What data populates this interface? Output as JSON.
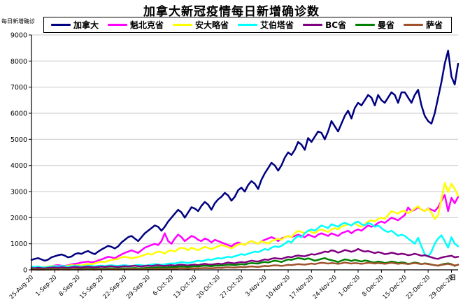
{
  "colors": {
    "grid": "#c9c9c9",
    "axis": "#000000",
    "background": "#ffffff",
    "text": "#000000"
  },
  "chart_data": {
    "type": "line",
    "title": "加拿大新冠疫情每日新增确诊数",
    "ylabel": "每日新增确诊",
    "xlabel": "日",
    "ylim": [
      0,
      9000
    ],
    "y_ticks": [
      0,
      1000,
      2000,
      3000,
      4000,
      5000,
      6000,
      7000,
      8000,
      9000
    ],
    "grid": "horizontal",
    "legend_position": "top",
    "x_tick_interval_days": 7,
    "x_tick_labels": [
      "25-Aug-20",
      "1-Sep-20",
      "8-Sep-20",
      "15-Sep-20",
      "22-Sep-20",
      "29-Sep-20",
      "6-Oct-20",
      "13-Oct-20",
      "20-Oct-20",
      "27-Oct-20",
      "3-Nov-20",
      "10-Nov-20",
      "17-Nov-20",
      "24-Nov-20",
      "1-Dec-20",
      "8-Dec-20",
      "15-Dec-20",
      "22-Dec-20",
      "29-Dec-20"
    ],
    "series": [
      {
        "name": "加拿大",
        "color": "#000080",
        "values": [
          380,
          420,
          450,
          400,
          350,
          390,
          480,
          520,
          560,
          590,
          545,
          480,
          510,
          600,
          640,
          610,
          680,
          720,
          650,
          600,
          700,
          780,
          850,
          920,
          880,
          820,
          900,
          1050,
          1150,
          1250,
          1300,
          1200,
          1100,
          1250,
          1400,
          1500,
          1600,
          1700,
          1650,
          1500,
          1650,
          1850,
          2000,
          2150,
          2300,
          2200,
          2000,
          2200,
          2400,
          2350,
          2250,
          2450,
          2600,
          2500,
          2300,
          2550,
          2700,
          2800,
          2950,
          2850,
          2650,
          2800,
          3050,
          3150,
          3000,
          3250,
          3400,
          3300,
          3100,
          3450,
          3700,
          3900,
          4100,
          4000,
          3800,
          4000,
          4300,
          4500,
          4400,
          4600,
          4900,
          4800,
          4600,
          5050,
          4900,
          5100,
          5300,
          5250,
          5000,
          5300,
          5700,
          5500,
          5300,
          5600,
          5900,
          6100,
          5800,
          6200,
          6400,
          6300,
          6500,
          6700,
          6600,
          6300,
          6700,
          6500,
          6400,
          6600,
          6800,
          6700,
          6400,
          6800,
          6800,
          6600,
          6400,
          6700,
          6900,
          6300,
          5900,
          5700,
          5600,
          6000,
          6600,
          7200,
          7900,
          8400,
          7400,
          7100,
          7900
        ]
      },
      {
        "name": "魁北克省",
        "color": "#FF00FF",
        "values": [
          60,
          80,
          100,
          90,
          70,
          110,
          140,
          170,
          180,
          160,
          150,
          180,
          210,
          230,
          250,
          280,
          300,
          320,
          290,
          310,
          360,
          400,
          450,
          500,
          480,
          440,
          520,
          590,
          650,
          700,
          750,
          700,
          650,
          750,
          850,
          900,
          950,
          1000,
          950,
          1100,
          1400,
          1100,
          1000,
          1200,
          1350,
          1250,
          1100,
          1200,
          1300,
          1250,
          1150,
          1100,
          1200,
          1150,
          1050,
          1150,
          1100,
          1050,
          1000,
          950,
          900,
          1000,
          1050,
          1000,
          950,
          1050,
          1100,
          1050,
          1000,
          1100,
          1150,
          1200,
          1250,
          1200,
          1100,
          1200,
          1250,
          1300,
          1250,
          1300,
          1350,
          1300,
          1250,
          1350,
          1300,
          1250,
          1350,
          1400,
          1350,
          1300,
          1400,
          1350,
          1300,
          1400,
          1450,
          1500,
          1400,
          1500,
          1550,
          1500,
          1600,
          1700,
          1650,
          1700,
          1800,
          1850,
          1800,
          1900,
          2000,
          1950,
          1900,
          2000,
          2100,
          2390,
          2250,
          2300,
          2400,
          2310,
          2250,
          2360,
          2300,
          2250,
          2400,
          2650,
          2870,
          2250,
          2760,
          2550,
          2800
        ]
      },
      {
        "name": "安大略省",
        "color": "#FFFF00",
        "values": [
          110,
          120,
          105,
          95,
          115,
          125,
          140,
          150,
          135,
          120,
          140,
          160,
          180,
          170,
          185,
          170,
          200,
          230,
          210,
          250,
          290,
          320,
          300,
          340,
          380,
          400,
          420,
          480,
          500,
          480,
          440,
          470,
          490,
          530,
          580,
          620,
          580,
          650,
          700,
          680,
          620,
          720,
          750,
          700,
          800,
          850,
          820,
          750,
          850,
          800,
          750,
          820,
          880,
          840,
          790,
          850,
          900,
          950,
          920,
          870,
          820,
          900,
          970,
          1000,
          950,
          1050,
          1100,
          1050,
          1000,
          1100,
          1050,
          1000,
          1100,
          1150,
          1200,
          1150,
          1250,
          1300,
          1250,
          1400,
          1500,
          1450,
          1400,
          1500,
          1450,
          1400,
          1500,
          1550,
          1500,
          1450,
          1550,
          1600,
          1550,
          1650,
          1700,
          1750,
          1700,
          1800,
          1700,
          1650,
          1750,
          1850,
          1900,
          1850,
          1950,
          2000,
          1950,
          2100,
          2250,
          2200,
          2150,
          2250,
          2250,
          2170,
          2250,
          2350,
          2440,
          2300,
          2250,
          2350,
          2200,
          1950,
          2100,
          2700,
          3330,
          2980,
          3300,
          3100,
          2840
        ]
      },
      {
        "name": "艾伯塔省",
        "color": "#00FFFF",
        "values": [
          120,
          110,
          130,
          100,
          90,
          110,
          125,
          140,
          130,
          150,
          135,
          120,
          140,
          155,
          145,
          130,
          140,
          160,
          150,
          135,
          150,
          160,
          145,
          165,
          175,
          160,
          150,
          170,
          180,
          160,
          150,
          170,
          190,
          175,
          160,
          180,
          200,
          220,
          210,
          190,
          210,
          230,
          250,
          240,
          270,
          300,
          280,
          260,
          290,
          320,
          350,
          330,
          360,
          400,
          380,
          420,
          450,
          430,
          470,
          500,
          480,
          520,
          560,
          600,
          570,
          620,
          660,
          700,
          680,
          730,
          800,
          760,
          850,
          900,
          870,
          920,
          1000,
          1100,
          1050,
          1200,
          1300,
          1250,
          1400,
          1500,
          1550,
          1500,
          1600,
          1700,
          1650,
          1600,
          1750,
          1700,
          1650,
          1750,
          1800,
          1750,
          1700,
          1800,
          1850,
          1750,
          1700,
          1800,
          1750,
          1650,
          1700,
          1600,
          1500,
          1450,
          1500,
          1400,
          1300,
          1350,
          1300,
          1200,
          1100,
          1000,
          1230,
          900,
          600,
          500,
          700,
          1000,
          1200,
          1320,
          1100,
          850,
          1250,
          1000,
          900
        ]
      },
      {
        "name": "BC省",
        "color": "#800080",
        "values": [
          70,
          60,
          80,
          65,
          55,
          75,
          85,
          90,
          80,
          100,
          85,
          75,
          95,
          110,
          100,
          90,
          110,
          120,
          105,
          95,
          115,
          125,
          110,
          130,
          140,
          120,
          110,
          130,
          140,
          125,
          145,
          160,
          140,
          130,
          150,
          160,
          145,
          165,
          180,
          160,
          150,
          170,
          180,
          160,
          185,
          200,
          180,
          170,
          190,
          200,
          180,
          210,
          230,
          210,
          200,
          220,
          240,
          220,
          250,
          280,
          260,
          250,
          280,
          300,
          280,
          320,
          350,
          330,
          320,
          360,
          400,
          380,
          425,
          450,
          430,
          420,
          460,
          500,
          480,
          525,
          550,
          530,
          520,
          560,
          600,
          580,
          620,
          650,
          700,
          680,
          750,
          720,
          660,
          700,
          760,
          730,
          690,
          730,
          800,
          740,
          700,
          720,
          680,
          640,
          680,
          650,
          600,
          620,
          660,
          630,
          590,
          620,
          600,
          560,
          580,
          620,
          580,
          540,
          560,
          520,
          480,
          440,
          420,
          470,
          500,
          520,
          540,
          480,
          500
        ]
      },
      {
        "name": "曼省",
        "color": "#008000",
        "values": [
          25,
          30,
          20,
          15,
          25,
          35,
          30,
          35,
          25,
          30,
          40,
          35,
          25,
          35,
          40,
          30,
          45,
          50,
          40,
          35,
          45,
          50,
          40,
          55,
          60,
          50,
          45,
          55,
          60,
          50,
          65,
          70,
          60,
          55,
          70,
          80,
          70,
          90,
          100,
          90,
          80,
          100,
          110,
          100,
          120,
          130,
          120,
          110,
          130,
          140,
          130,
          150,
          160,
          150,
          140,
          160,
          170,
          160,
          180,
          200,
          190,
          180,
          200,
          220,
          200,
          240,
          260,
          250,
          240,
          280,
          300,
          280,
          320,
          350,
          330,
          300,
          350,
          400,
          380,
          420,
          450,
          430,
          400,
          440,
          400,
          350,
          380,
          420,
          450,
          400,
          370,
          340,
          300,
          350,
          400,
          380,
          340,
          380,
          350,
          320,
          360,
          340,
          300,
          280,
          320,
          300,
          260,
          280,
          320,
          300,
          260,
          290,
          270,
          230,
          250,
          280,
          260,
          220,
          250,
          230,
          200,
          180,
          160,
          200,
          230,
          250,
          220,
          150,
          200
        ]
      },
      {
        "name": "萨省",
        "color": "#A0522D",
        "values": [
          10,
          15,
          8,
          12,
          10,
          15,
          12,
          15,
          10,
          18,
          14,
          10,
          15,
          20,
          15,
          12,
          18,
          22,
          16,
          12,
          18,
          20,
          15,
          22,
          25,
          18,
          15,
          22,
          25,
          18,
          24,
          30,
          25,
          20,
          28,
          30,
          25,
          35,
          40,
          35,
          30,
          40,
          45,
          40,
          50,
          55,
          50,
          45,
          55,
          60,
          55,
          65,
          70,
          65,
          60,
          70,
          80,
          70,
          90,
          100,
          90,
          85,
          100,
          110,
          100,
          120,
          130,
          120,
          110,
          130,
          150,
          140,
          160,
          175,
          165,
          150,
          170,
          190,
          180,
          200,
          220,
          210,
          200,
          220,
          240,
          220,
          250,
          270,
          260,
          240,
          260,
          250,
          230,
          250,
          280,
          260,
          240,
          260,
          250,
          230,
          250,
          270,
          260,
          240,
          260,
          250,
          230,
          250,
          270,
          250,
          230,
          250,
          240,
          220,
          240,
          260,
          240,
          220,
          240,
          220,
          200,
          180,
          160,
          190,
          210,
          230,
          200,
          170,
          190
        ]
      }
    ]
  }
}
